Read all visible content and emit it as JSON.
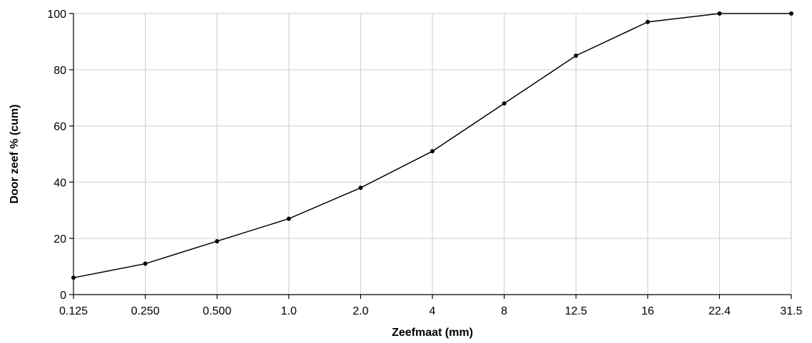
{
  "chart_data": {
    "type": "line",
    "xlabel": "Zeefmaat (mm)",
    "ylabel": "Door zeef % (cum)",
    "categories": [
      "0.125",
      "0.250",
      "0.500",
      "1.0",
      "2.0",
      "4",
      "8",
      "12.5",
      "16",
      "22.4",
      "31.5"
    ],
    "series": [
      {
        "values": [
          6,
          11,
          19,
          27,
          38,
          51,
          68,
          85,
          97,
          100,
          100
        ]
      }
    ],
    "ylim": [
      0,
      100
    ],
    "yticks": [
      "0",
      "20",
      "40",
      "60",
      "80",
      "100"
    ],
    "grid": true,
    "legend": "none",
    "colors": {
      "line": "#000000",
      "grid": "#cccccc"
    }
  }
}
